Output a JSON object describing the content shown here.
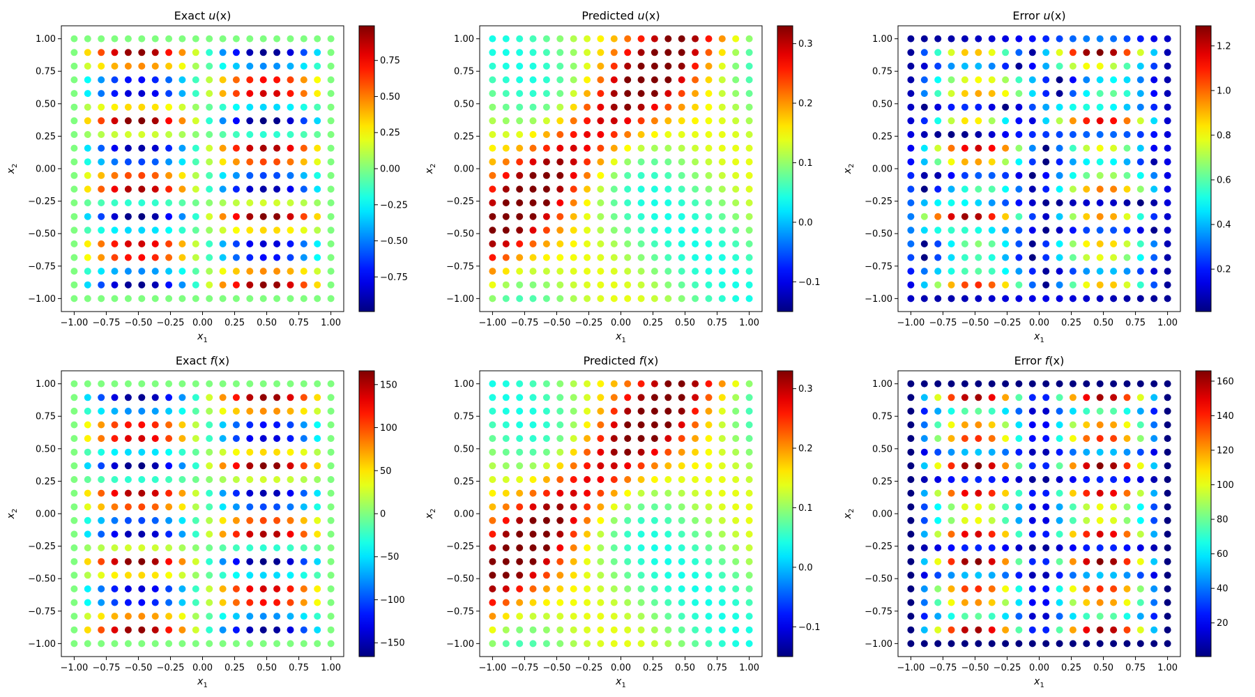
{
  "figure": {
    "grid_points_per_axis": 20,
    "colormap": "jet"
  },
  "chart_data": [
    {
      "type": "scatter",
      "title_pre": "Exact ",
      "title_math": "u",
      "title_post": "(x)",
      "xlabel": "x",
      "xlabel_sub": "1",
      "ylabel": "x",
      "ylabel_sub": "2",
      "xlim": [
        -1.1,
        1.1
      ],
      "ylim": [
        -1.1,
        1.1
      ],
      "x_ticks": [
        "-1.00",
        "-0.75",
        "-0.50",
        "-0.25",
        "0.00",
        "0.25",
        "0.50",
        "0.75",
        "1.00"
      ],
      "y_ticks": [
        "-1.00",
        "-0.75",
        "-0.50",
        "-0.25",
        "0.00",
        "0.25",
        "0.50",
        "0.75",
        "1.00"
      ],
      "field": "sin(pi*x1)*sin(4*pi*x2)",
      "colorbar": {
        "vmin": -0.99,
        "vmax": 0.99,
        "ticks": [
          -0.75,
          -0.5,
          -0.25,
          0,
          0.25,
          0.5,
          0.75
        ],
        "tick_labels": [
          "−0.75",
          "−0.50",
          "−0.25",
          "0.00",
          "0.25",
          "0.50",
          "0.75"
        ]
      }
    },
    {
      "type": "scatter",
      "title_pre": "Predicted ",
      "title_math": "u",
      "title_post": "(x)",
      "xlabel": "x",
      "xlabel_sub": "1",
      "ylabel": "x",
      "ylabel_sub": "2",
      "xlim": [
        -1.1,
        1.1
      ],
      "ylim": [
        -1.1,
        1.1
      ],
      "x_ticks": [
        "-1.00",
        "-0.75",
        "-0.50",
        "-0.25",
        "0.00",
        "0.25",
        "0.50",
        "0.75",
        "1.00"
      ],
      "y_ticks": [
        "-1.00",
        "-0.75",
        "-0.50",
        "-0.25",
        "0.00",
        "0.25",
        "0.50",
        "0.75",
        "1.00"
      ],
      "field": "diagonal band, max near x1 ≈ x2 - 0.5",
      "colorbar": {
        "vmin": -0.15,
        "vmax": 0.33,
        "ticks": [
          -0.1,
          0,
          0.1,
          0.2,
          0.3
        ],
        "tick_labels": [
          "−0.1",
          "0.0",
          "0.1",
          "0.2",
          "0.3"
        ]
      }
    },
    {
      "type": "scatter",
      "title_pre": "Error ",
      "title_math": "u",
      "title_post": "(x)",
      "xlabel": "x",
      "xlabel_sub": "1",
      "ylabel": "x",
      "ylabel_sub": "2",
      "xlim": [
        -1.1,
        1.1
      ],
      "ylim": [
        -1.1,
        1.1
      ],
      "x_ticks": [
        "-1.00",
        "-0.75",
        "-0.50",
        "-0.25",
        "0.00",
        "0.25",
        "0.50",
        "0.75",
        "1.00"
      ],
      "y_ticks": [
        "-1.00",
        "-0.75",
        "-0.50",
        "-0.25",
        "0.00",
        "0.25",
        "0.50",
        "0.75",
        "1.00"
      ],
      "field": "|exact - predicted|",
      "colorbar": {
        "vmin": 0.01,
        "vmax": 1.29,
        "ticks": [
          0.2,
          0.4,
          0.6,
          0.8,
          1.0,
          1.2
        ],
        "tick_labels": [
          "0.2",
          "0.4",
          "0.6",
          "0.8",
          "1.0",
          "1.2"
        ]
      }
    },
    {
      "type": "scatter",
      "title_pre": "Exact ",
      "title_math": "f",
      "title_post": "(x)",
      "xlabel": "x",
      "xlabel_sub": "1",
      "ylabel": "x",
      "ylabel_sub": "2",
      "xlim": [
        -1.1,
        1.1
      ],
      "ylim": [
        -1.1,
        1.1
      ],
      "x_ticks": [
        "-1.00",
        "-0.75",
        "-0.50",
        "-0.25",
        "0.00",
        "0.25",
        "0.50",
        "0.75",
        "1.00"
      ],
      "y_ticks": [
        "-1.00",
        "-0.75",
        "-0.50",
        "-0.25",
        "0.00",
        "0.25",
        "0.50",
        "0.75",
        "1.00"
      ],
      "field": "-166*sin(pi*x1)*sin(4*pi*x2)",
      "colorbar": {
        "vmin": -166,
        "vmax": 166,
        "ticks": [
          -150,
          -100,
          -50,
          0,
          50,
          100,
          150
        ],
        "tick_labels": [
          "−150",
          "−100",
          "−50",
          "0",
          "50",
          "100",
          "150"
        ]
      }
    },
    {
      "type": "scatter",
      "title_pre": "Predicted ",
      "title_math": "f",
      "title_post": "(x)",
      "xlabel": "x",
      "xlabel_sub": "1",
      "ylabel": "x",
      "ylabel_sub": "2",
      "xlim": [
        -1.1,
        1.1
      ],
      "ylim": [
        -1.1,
        1.1
      ],
      "x_ticks": [
        "-1.00",
        "-0.75",
        "-0.50",
        "-0.25",
        "0.00",
        "0.25",
        "0.50",
        "0.75",
        "1.00"
      ],
      "y_ticks": [
        "-1.00",
        "-0.75",
        "-0.50",
        "-0.25",
        "0.00",
        "0.25",
        "0.50",
        "0.75",
        "1.00"
      ],
      "field": "diagonal band, max near x1 ≈ x2 - 0.5",
      "colorbar": {
        "vmin": -0.15,
        "vmax": 0.33,
        "ticks": [
          -0.1,
          0,
          0.1,
          0.2,
          0.3
        ],
        "tick_labels": [
          "−0.1",
          "0.0",
          "0.1",
          "0.2",
          "0.3"
        ]
      }
    },
    {
      "type": "scatter",
      "title_pre": "Error ",
      "title_math": "f",
      "title_post": "(x)",
      "xlabel": "x",
      "xlabel_sub": "1",
      "ylabel": "x",
      "ylabel_sub": "2",
      "xlim": [
        -1.1,
        1.1
      ],
      "ylim": [
        -1.1,
        1.1
      ],
      "x_ticks": [
        "-1.00",
        "-0.75",
        "-0.50",
        "-0.25",
        "0.00",
        "0.25",
        "0.50",
        "0.75",
        "1.00"
      ],
      "y_ticks": [
        "-1.00",
        "-0.75",
        "-0.50",
        "-0.25",
        "0.00",
        "0.25",
        "0.50",
        "0.75",
        "1.00"
      ],
      "field": "|exact - predicted|",
      "colorbar": {
        "vmin": 0.5,
        "vmax": 166,
        "ticks": [
          20,
          40,
          60,
          80,
          100,
          120,
          140,
          160
        ],
        "tick_labels": [
          "20",
          "40",
          "60",
          "80",
          "100",
          "120",
          "140",
          "160"
        ]
      }
    }
  ]
}
